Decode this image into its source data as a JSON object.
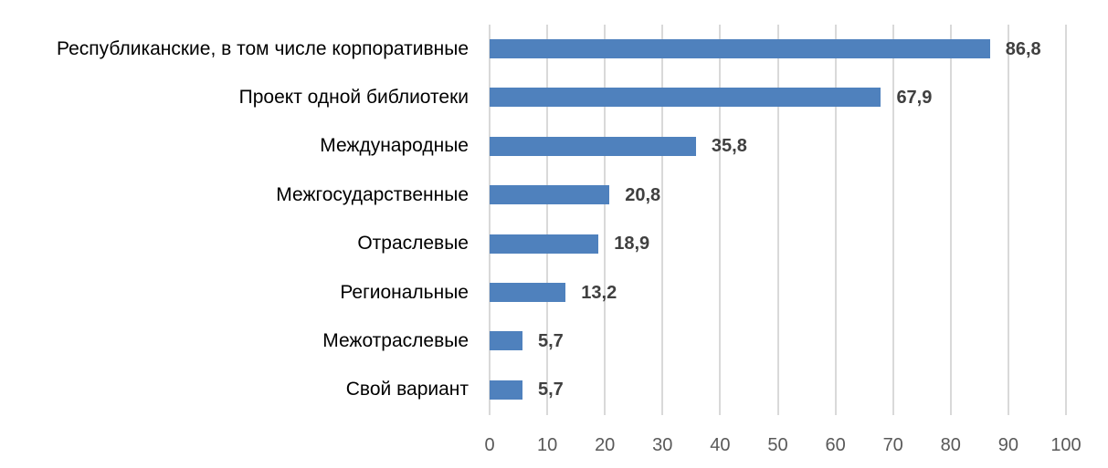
{
  "chart_data": {
    "type": "bar",
    "orientation": "horizontal",
    "title": "",
    "xlabel": "",
    "ylabel": "",
    "categories": [
      "Республиканские, в том числе корпоративные",
      "Проект одной библиотеки",
      "Международные",
      "Межгосударственные",
      "Отраслевые",
      "Региональные",
      "Межотраслевые",
      "Свой вариант"
    ],
    "values": [
      86.8,
      67.9,
      35.8,
      20.8,
      18.9,
      13.2,
      5.7,
      5.7
    ],
    "value_labels": [
      "86,8",
      "67,9",
      "35,8",
      "20,8",
      "18,9",
      "13,2",
      "5,7",
      "5,7"
    ],
    "xlim": [
      0,
      100
    ],
    "x_ticks": [
      "0",
      "10",
      "20",
      "30",
      "40",
      "50",
      "60",
      "70",
      "80",
      "90",
      "100"
    ],
    "grid": "vertical",
    "legend": "none",
    "bar_color": "#4F81BD"
  }
}
